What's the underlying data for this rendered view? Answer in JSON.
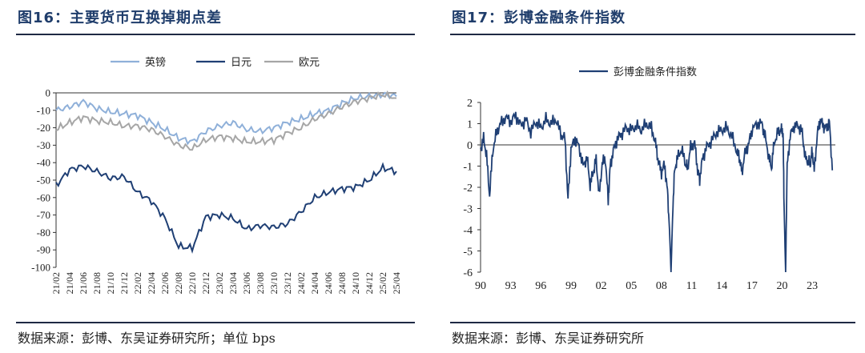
{
  "colors": {
    "accent": "#1f3d6b",
    "gbp": "#8fb0d9",
    "jpy": "#1f3f74",
    "eur": "#a6a6a6",
    "fci": "#1f3f74"
  },
  "left": {
    "title": "图16：主要货币互换掉期点差",
    "source": "数据来源：彭博、东吴证券研究所；单位 bps"
  },
  "right": {
    "title": "图17：彭博金融条件指数",
    "source": "数据来源：彭博、东吴证券研究所"
  },
  "chart_data": [
    {
      "type": "line",
      "title": "",
      "xlabel": "",
      "ylabel": "",
      "ylim": [
        -100,
        0
      ],
      "yticks": [
        0,
        -10,
        -20,
        -30,
        -40,
        -50,
        -60,
        -70,
        -80,
        -90,
        -100
      ],
      "categories": [
        "21/02",
        "21/04",
        "21/06",
        "21/08",
        "21/10",
        "21/12",
        "22/02",
        "22/04",
        "22/06",
        "22/08",
        "22/10",
        "22/12",
        "23/02",
        "23/04",
        "23/06",
        "23/08",
        "23/10",
        "23/12",
        "24/02",
        "24/04",
        "24/06",
        "24/08",
        "24/10",
        "24/12",
        "25/02",
        "25/04"
      ],
      "legend": "top",
      "grid": false,
      "series": [
        {
          "name": "英镑",
          "values": [
            -10,
            -8,
            -5,
            -9,
            -11,
            -12,
            -13,
            -17,
            -21,
            -26,
            -28,
            -22,
            -19,
            -17,
            -21,
            -22,
            -20,
            -17,
            -15,
            -12,
            -10,
            -6,
            -3,
            -2,
            -1,
            -2
          ]
        },
        {
          "name": "日元",
          "values": [
            -53,
            -44,
            -42,
            -45,
            -49,
            -48,
            -57,
            -62,
            -72,
            -88,
            -89,
            -71,
            -70,
            -72,
            -78,
            -76,
            -77,
            -75,
            -68,
            -60,
            -57,
            -55,
            -54,
            -50,
            -43,
            -45
          ]
        },
        {
          "name": "欧元",
          "values": [
            -21,
            -17,
            -14,
            -16,
            -17,
            -19,
            -19,
            -21,
            -25,
            -30,
            -32,
            -27,
            -25,
            -26,
            -28,
            -28,
            -27,
            -23,
            -20,
            -15,
            -12,
            -8,
            -5,
            -3,
            -1,
            -3
          ]
        }
      ]
    },
    {
      "type": "line",
      "title": "",
      "xlabel": "",
      "ylabel": "",
      "ylim": [
        -6,
        2
      ],
      "yticks": [
        2,
        1,
        0,
        -1,
        -2,
        -3,
        -4,
        -5,
        -6
      ],
      "categories": [
        "90",
        "93",
        "96",
        "99",
        "02",
        "05",
        "08",
        "11",
        "14",
        "17",
        "20",
        "23"
      ],
      "legend": "top",
      "grid": false,
      "series": [
        {
          "name": "彭博金融条件指数",
          "x": [
            1990.0,
            1990.3,
            1990.6,
            1990.9,
            1991.2,
            1991.6,
            1992.0,
            1992.5,
            1993.0,
            1993.5,
            1994.0,
            1994.5,
            1995.0,
            1995.5,
            1996.0,
            1996.5,
            1997.0,
            1997.5,
            1998.0,
            1998.4,
            1998.7,
            1999.0,
            1999.4,
            1999.8,
            2000.2,
            2000.6,
            2000.9,
            2001.2,
            2001.5,
            2001.8,
            2002.1,
            2002.4,
            2002.7,
            2002.9,
            2003.2,
            2003.6,
            2004.0,
            2004.5,
            2005.0,
            2005.5,
            2006.0,
            2006.5,
            2007.0,
            2007.4,
            2007.7,
            2008.0,
            2008.3,
            2008.6,
            2008.8,
            2008.95,
            2009.1,
            2009.3,
            2009.6,
            2010.0,
            2010.4,
            2010.6,
            2010.9,
            2011.3,
            2011.6,
            2011.8,
            2012.1,
            2012.5,
            2013.0,
            2013.5,
            2014.0,
            2014.5,
            2015.0,
            2015.5,
            2015.8,
            2016.0,
            2016.3,
            2016.7,
            2017.0,
            2017.5,
            2018.0,
            2018.3,
            2018.7,
            2018.95,
            2019.2,
            2019.6,
            2019.9,
            2020.1,
            2020.2,
            2020.35,
            2020.5,
            2020.8,
            2021.2,
            2021.6,
            2022.0,
            2022.3,
            2022.6,
            2022.8,
            2023.0,
            2023.2,
            2023.5,
            2023.8,
            2024.1,
            2024.4,
            2024.7,
            2025.0
          ],
          "values": [
            -0.2,
            0.3,
            -0.5,
            -2.4,
            -0.3,
            0.6,
            1.0,
            1.3,
            1.1,
            1.4,
            0.9,
            1.2,
            0.6,
            1.1,
            0.8,
            1.2,
            1.0,
            1.2,
            0.5,
            0.3,
            -2.6,
            -0.2,
            0.3,
            -0.1,
            -1.0,
            -0.6,
            -1.9,
            -1.3,
            -0.7,
            -2.4,
            -0.9,
            -0.6,
            -2.6,
            -1.0,
            -0.3,
            0.3,
            0.5,
            0.8,
            0.7,
            0.9,
            0.7,
            1.0,
            0.8,
            0.1,
            -0.8,
            -1.3,
            -0.9,
            -2.2,
            -4.0,
            -6.0,
            -3.5,
            -1.2,
            -0.6,
            -0.2,
            -0.9,
            -1.1,
            -0.1,
            0.1,
            -1.2,
            -1.6,
            -0.6,
            -0.1,
            0.2,
            0.6,
            0.7,
            0.8,
            0.4,
            -0.3,
            -0.7,
            -1.3,
            -0.4,
            0.1,
            0.7,
            1.0,
            1.0,
            0.4,
            -0.6,
            -1.1,
            0.1,
            0.6,
            0.7,
            0.6,
            -3.0,
            -6.0,
            -1.0,
            0.4,
            0.9,
            0.9,
            0.6,
            -0.6,
            -0.8,
            -0.9,
            -0.3,
            -1.2,
            0.5,
            1.2,
            0.9,
            0.8,
            1.1,
            -1.2
          ]
        }
      ]
    }
  ]
}
